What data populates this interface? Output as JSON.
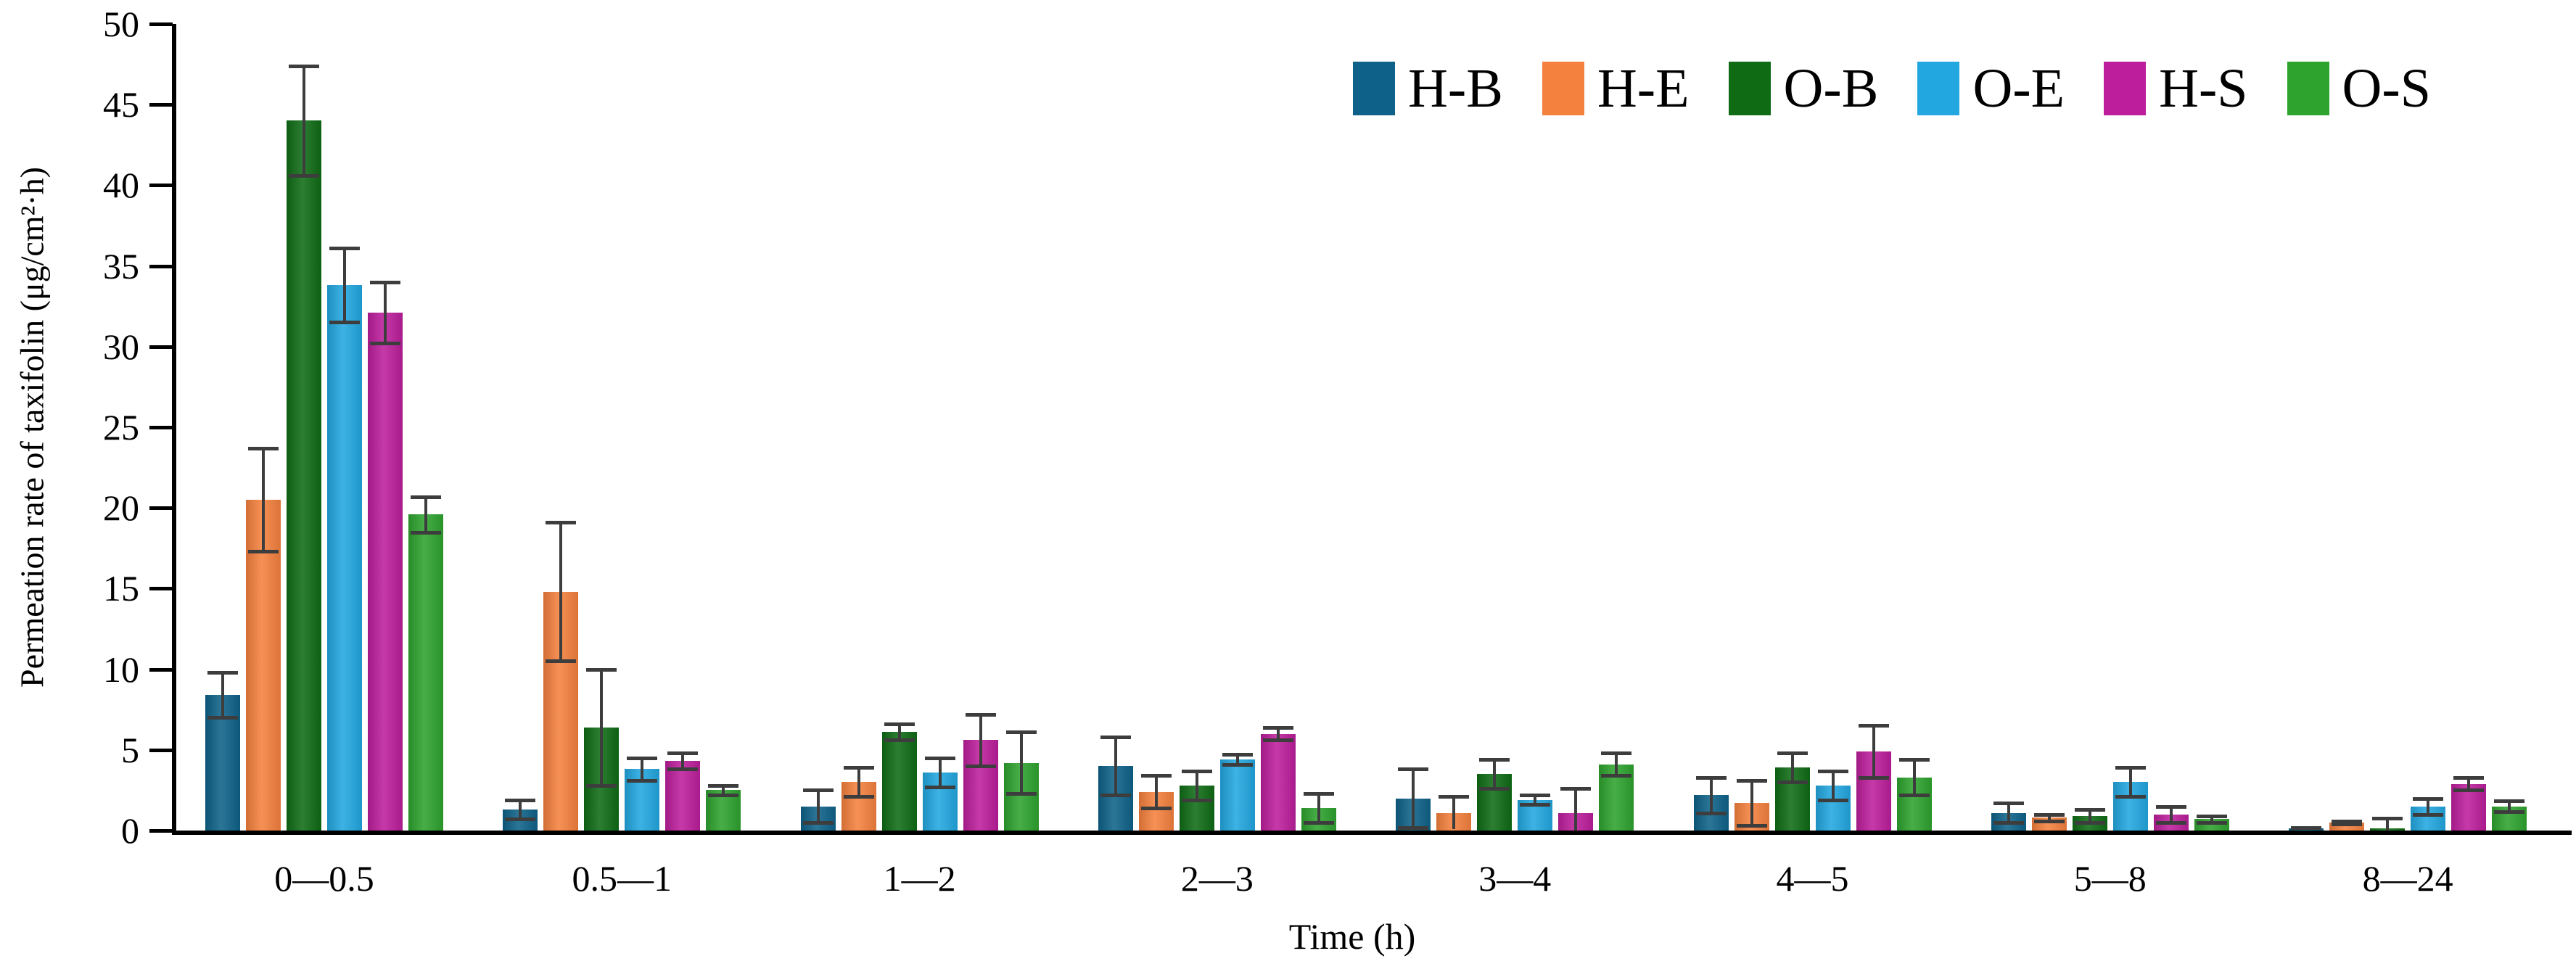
{
  "chart_data": {
    "type": "bar",
    "title": "",
    "xlabel": "Time (h)",
    "ylabel": "Permeation rate of taxifolin (μg/cm²·h)",
    "ylim": [
      0,
      50
    ],
    "ytick_step": 5,
    "grid": false,
    "legend_position": "top-right",
    "error_bar_color": "#3d3d3d",
    "categories": [
      "0—0.5",
      "0.5—1",
      "1—2",
      "2—3",
      "3—4",
      "4—5",
      "5—8",
      "8—24"
    ],
    "series": [
      {
        "name": "H-B",
        "color": "#0e6289",
        "values": [
          8.4,
          1.3,
          1.5,
          4.0,
          2.0,
          2.2,
          1.1,
          0.15
        ],
        "errors": [
          1.4,
          0.6,
          1.0,
          1.8,
          1.8,
          1.1,
          0.6,
          0.05
        ]
      },
      {
        "name": "H-E",
        "color": "#f5813e",
        "values": [
          20.5,
          14.8,
          3.0,
          2.4,
          1.1,
          1.7,
          0.8,
          0.5
        ],
        "errors": [
          3.2,
          4.3,
          0.9,
          1.0,
          1.0,
          1.4,
          0.2,
          0.1
        ]
      },
      {
        "name": "O-B",
        "color": "#0f6c15",
        "values": [
          44.0,
          6.4,
          6.1,
          2.8,
          3.5,
          3.9,
          0.9,
          0.15
        ],
        "errors": [
          3.4,
          3.6,
          0.5,
          0.9,
          0.9,
          0.9,
          0.4,
          0.6
        ]
      },
      {
        "name": "O-E",
        "color": "#22a7e0",
        "values": [
          33.8,
          3.8,
          3.6,
          4.4,
          1.9,
          2.8,
          3.0,
          1.5
        ],
        "errors": [
          2.3,
          0.7,
          0.9,
          0.3,
          0.3,
          0.9,
          0.9,
          0.5
        ]
      },
      {
        "name": "H-S",
        "color": "#bd1e9c",
        "values": [
          32.1,
          4.3,
          5.6,
          6.0,
          1.1,
          4.9,
          1.0,
          2.9
        ],
        "errors": [
          1.9,
          0.5,
          1.6,
          0.4,
          1.5,
          1.6,
          0.5,
          0.4
        ]
      },
      {
        "name": "O-S",
        "color": "#2ea32e",
        "values": [
          19.6,
          2.5,
          4.2,
          1.4,
          4.1,
          3.3,
          0.7,
          1.5
        ],
        "errors": [
          1.1,
          0.3,
          1.9,
          0.9,
          0.7,
          1.1,
          0.2,
          0.35
        ]
      }
    ]
  }
}
